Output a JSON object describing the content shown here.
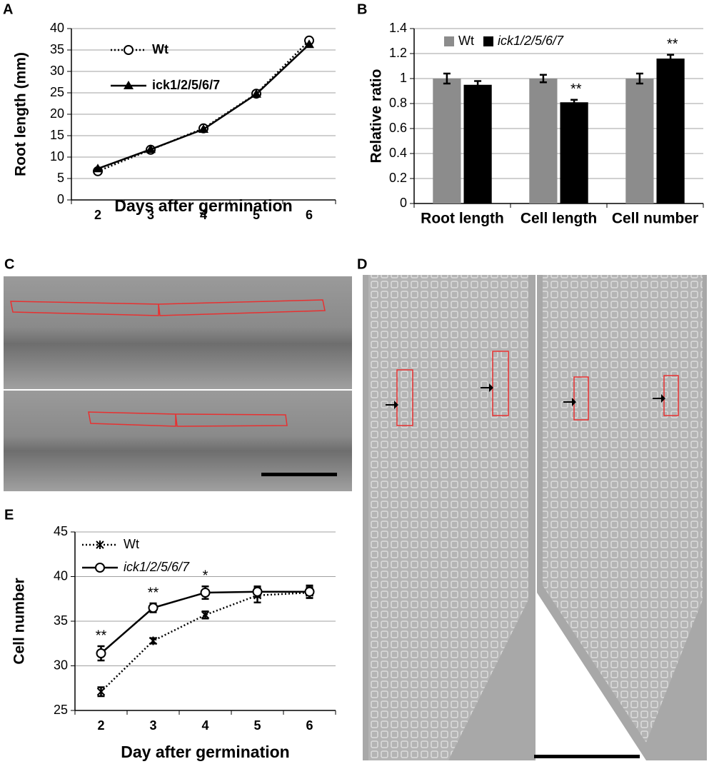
{
  "chart_data": [
    {
      "type": "line",
      "panel": "A",
      "x_label": "Days after germination",
      "y_label": "Root length (mm)",
      "categories": [
        "2",
        "3",
        "4",
        "5",
        "6"
      ],
      "ylim": [
        0,
        40
      ],
      "yticks": [
        0,
        5,
        10,
        15,
        20,
        25,
        30,
        35,
        40
      ],
      "grid": true,
      "legend": "upper left",
      "series": [
        {
          "name": "Wt",
          "color": "#000000",
          "line_style": "dotted",
          "marker": "open-circle",
          "values": [
            6.7,
            11.7,
            16.7,
            24.8,
            37.2
          ]
        },
        {
          "name": "ick1/2/5/6/7",
          "color": "#000000",
          "line_style": "solid",
          "marker": "triangle",
          "values": [
            7.3,
            11.8,
            16.5,
            24.7,
            36.3
          ]
        }
      ]
    },
    {
      "type": "bar",
      "panel": "B",
      "y_label": "Relative ratio",
      "categories": [
        "Root length",
        "Cell length",
        "Cell number"
      ],
      "ylim": [
        0,
        1.4
      ],
      "yticks": [
        0,
        0.2,
        0.4,
        0.6,
        0.8,
        1,
        1.2,
        1.4
      ],
      "grid": true,
      "legend": "upper center",
      "significance": [
        null,
        "**",
        "**"
      ],
      "series": [
        {
          "name": "Wt",
          "color": "#8c8c8c",
          "values": [
            1,
            1,
            1
          ],
          "errors": [
            0.04,
            0.03,
            0.04
          ]
        },
        {
          "name": "ick1/2/5/6/7",
          "color": "#000000",
          "values": [
            0.95,
            0.81,
            1.16
          ],
          "errors": [
            0.03,
            0.02,
            0.03
          ]
        }
      ]
    },
    {
      "type": "line",
      "panel": "E",
      "x_label": "Day after germination",
      "y_label": "Cell number",
      "categories": [
        "2",
        "3",
        "4",
        "5",
        "6"
      ],
      "ylim": [
        25,
        45
      ],
      "yticks": [
        25,
        30,
        35,
        40,
        45
      ],
      "grid": true,
      "legend": "upper left",
      "significance": [
        "**",
        "**",
        "*",
        null,
        null
      ],
      "series": [
        {
          "name": "Wt",
          "color": "#000000",
          "line_style": "dotted",
          "marker": "asterisk",
          "values": [
            27.1,
            32.8,
            35.7,
            37.9,
            38.2
          ],
          "errors": [
            0.5,
            0.3,
            0.4,
            0.8,
            0.6
          ]
        },
        {
          "name": "ick1/2/5/6/7",
          "color": "#000000",
          "line_style": "solid",
          "marker": "open-circle",
          "values": [
            31.4,
            36.5,
            38.2,
            38.3,
            38.3
          ],
          "errors": [
            0.8,
            0.5,
            0.7,
            0.6,
            0.7
          ]
        }
      ]
    }
  ],
  "image_panels": [
    "C",
    "D"
  ]
}
